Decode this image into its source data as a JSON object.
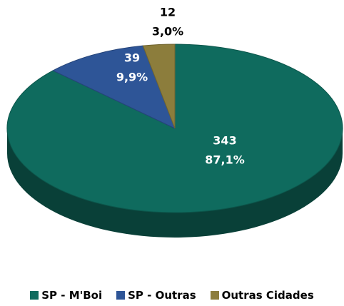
{
  "chart_data": {
    "type": "pie",
    "categories": [
      "SP - M'Boi",
      "SP - Outras",
      "Outras Cidades"
    ],
    "values": [
      343,
      39,
      12
    ],
    "percentages": [
      87.1,
      9.9,
      3.0
    ],
    "percentage_labels": [
      "87,1%",
      "9,9%",
      "3,0%"
    ],
    "colors": [
      "#0f6b5e",
      "#2e5597",
      "#8c7d3c"
    ],
    "legend": "bottom"
  }
}
